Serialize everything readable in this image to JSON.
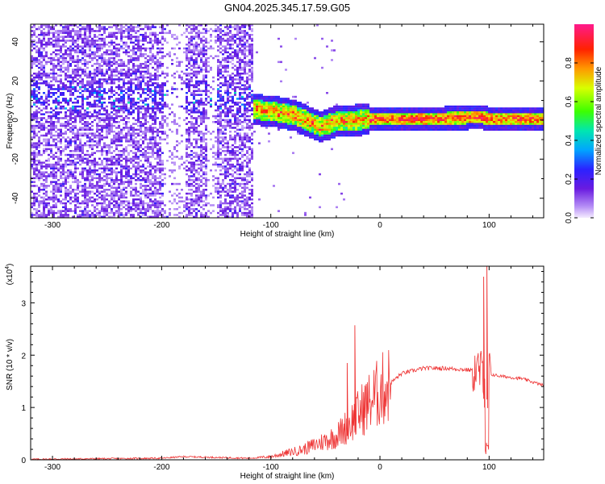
{
  "title": "GN04.2025.345.17.59.G05",
  "chart_data": [
    {
      "type": "heatmap",
      "name": "spectrogram",
      "xlabel": "Height of straight line (km)",
      "ylabel": "Frequency (Hz)",
      "xlim": [
        -320,
        150
      ],
      "ylim": [
        -50,
        49
      ],
      "xticks": [
        -300,
        -200,
        -100,
        0,
        100
      ],
      "yticks": [
        -40,
        -20,
        0,
        20,
        40
      ],
      "colorbar": {
        "label": "Normalized spectral amplitude",
        "ticks": [
          0.0,
          0.2,
          0.4,
          0.6,
          0.8
        ],
        "range": [
          0,
          1
        ]
      },
      "ridge": {
        "description_points_km_hz": [
          [
            -200,
            10
          ],
          [
            -150,
            8
          ],
          [
            -120,
            6
          ],
          [
            -100,
            5
          ],
          [
            -80,
            3
          ],
          [
            -55,
            -3
          ],
          [
            -40,
            0
          ],
          [
            0,
            1
          ],
          [
            50,
            1
          ],
          [
            90,
            2
          ],
          [
            100,
            1
          ],
          [
            150,
            1
          ]
        ]
      }
    },
    {
      "type": "line",
      "name": "snr",
      "xlabel": "Height of straight line (km)",
      "ylabel": "SNR (10 * v/v)",
      "multiplier": "(x10",
      "multiplier_exp": "4",
      "xlim": [
        -320,
        150
      ],
      "ylim": [
        0,
        3.7
      ],
      "xticks": [
        -300,
        -200,
        -100,
        0,
        100
      ],
      "yticks": [
        0,
        1,
        2,
        3
      ],
      "color": "#ee3333",
      "envelope_km_snr": [
        [
          -320,
          0.01
        ],
        [
          -200,
          0.03
        ],
        [
          -180,
          0.06
        ],
        [
          -120,
          0.03
        ],
        [
          -100,
          0.06
        ],
        [
          -70,
          0.2
        ],
        [
          -40,
          0.45
        ],
        [
          -25,
          0.75
        ],
        [
          -15,
          1.0
        ],
        [
          0,
          1.3
        ],
        [
          20,
          1.65
        ],
        [
          40,
          1.75
        ],
        [
          60,
          1.75
        ],
        [
          80,
          1.72
        ],
        [
          90,
          1.7
        ],
        [
          97,
          1.65
        ],
        [
          110,
          1.6
        ],
        [
          130,
          1.55
        ],
        [
          150,
          1.42
        ]
      ],
      "spikes_km_snr": [
        [
          -23,
          2.57
        ],
        [
          -30,
          1.85
        ],
        [
          95,
          3.5
        ],
        [
          98,
          3.7
        ]
      ]
    }
  ]
}
